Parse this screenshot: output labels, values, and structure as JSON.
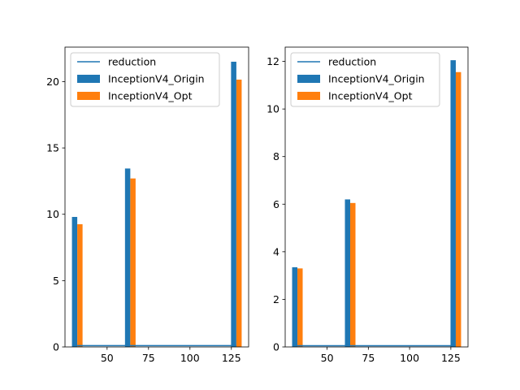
{
  "chart_data": [
    {
      "type": "bar",
      "title": "",
      "xlabel": "",
      "ylabel": "",
      "x": [
        32,
        64,
        128
      ],
      "xlim": [
        24.6,
        135.4
      ],
      "ylim": [
        0,
        22.6
      ],
      "xticks": [
        50,
        75,
        100,
        125
      ],
      "yticks": [
        0,
        5,
        10,
        15,
        20
      ],
      "bar_width": 3.2,
      "series": [
        {
          "name": "InceptionV4_Origin",
          "values": [
            9.8,
            13.45,
            21.5
          ],
          "color": "#1f77b4",
          "kind": "bar",
          "offset": -1.6
        },
        {
          "name": "InceptionV4_Opt",
          "values": [
            9.25,
            12.7,
            20.15
          ],
          "color": "#ff7f0e",
          "kind": "bar",
          "offset": 1.6
        },
        {
          "name": "reduction",
          "x": [
            32,
            64,
            128
          ],
          "values": [
            0.1,
            0.1,
            0.1
          ],
          "color": "#1f77b4",
          "kind": "line"
        }
      ],
      "legend": {
        "placement": "upper-left",
        "entries": [
          "reduction",
          "InceptionV4_Origin",
          "InceptionV4_Opt"
        ]
      },
      "grid": false
    },
    {
      "type": "bar",
      "title": "",
      "xlabel": "",
      "ylabel": "",
      "x": [
        32,
        64,
        128
      ],
      "xlim": [
        24.6,
        135.4
      ],
      "ylim": [
        0,
        12.6
      ],
      "xticks": [
        50,
        75,
        100,
        125
      ],
      "yticks": [
        0,
        2,
        4,
        6,
        8,
        10,
        12
      ],
      "bar_width": 3.2,
      "series": [
        {
          "name": "InceptionV4_Origin",
          "values": [
            3.35,
            6.2,
            12.05
          ],
          "color": "#1f77b4",
          "kind": "bar",
          "offset": -1.6
        },
        {
          "name": "InceptionV4_Opt",
          "values": [
            3.3,
            6.05,
            11.55
          ],
          "color": "#ff7f0e",
          "kind": "bar",
          "offset": 1.6
        },
        {
          "name": "reduction",
          "x": [
            32,
            64,
            128
          ],
          "values": [
            0.05,
            0.05,
            0.05
          ],
          "color": "#1f77b4",
          "kind": "line"
        }
      ],
      "legend": {
        "placement": "upper-left",
        "entries": [
          "reduction",
          "InceptionV4_Origin",
          "InceptionV4_Opt"
        ]
      },
      "grid": false
    }
  ]
}
